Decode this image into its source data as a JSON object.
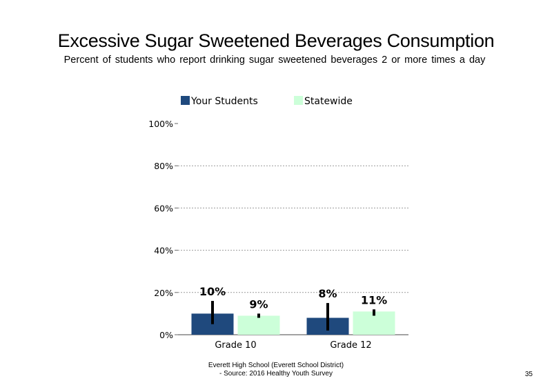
{
  "chart_data": {
    "type": "bar",
    "title": "Excessive Sugar Sweetened Beverages Consumption",
    "subtitle": "Percent of students who report drinking sugar sweetened beverages 2 or more times a day",
    "categories": [
      "Grade 10",
      "Grade 12"
    ],
    "series": [
      {
        "name": "Your Students",
        "color": "#1f497d",
        "values": [
          10,
          8
        ],
        "labels": [
          "10%",
          "8%"
        ],
        "error": [
          [
            5,
            16
          ],
          [
            2,
            15
          ]
        ]
      },
      {
        "name": "Statewide",
        "color": "#ccffd9",
        "values": [
          9,
          11
        ],
        "labels": [
          "9%",
          "11%"
        ],
        "error": [
          [
            8,
            10
          ],
          [
            9,
            12
          ]
        ]
      }
    ],
    "ylim": [
      0,
      100
    ],
    "yticks": [
      "0%",
      "20%",
      "40%",
      "60%",
      "80%",
      "100%"
    ],
    "ytick_values": [
      0,
      20,
      40,
      60,
      80,
      100
    ],
    "grid": true,
    "legend_position": "top"
  },
  "footer": {
    "line1": "Everett High School (Everett School District)",
    "line2": "- Source: 2016 Healthy Youth Survey"
  },
  "page_number": "35"
}
